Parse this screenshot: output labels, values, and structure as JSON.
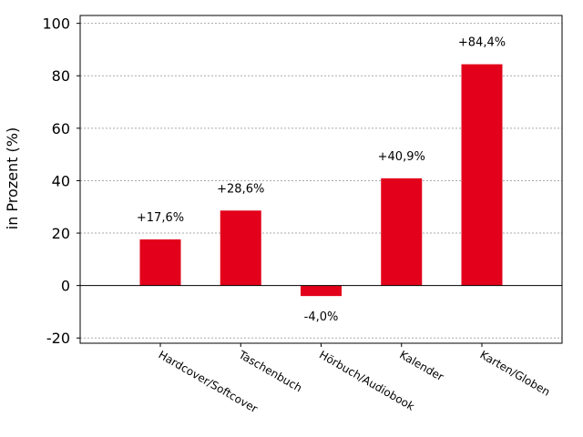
{
  "chart_data": {
    "type": "bar",
    "title": "",
    "xlabel": "",
    "ylabel": "in Prozent (%)",
    "categories": [
      "Hardcover/Softcover",
      "Taschenbuch",
      "Hörbuch/Audiobook",
      "Kalender",
      "Karten/Globen"
    ],
    "values": [
      17.6,
      28.6,
      -4.0,
      40.9,
      84.4
    ],
    "data_labels": [
      "+17,6%",
      "+28,6%",
      "-4,0%",
      "+40,9%",
      "+84,4%"
    ],
    "ylim": [
      -22,
      103
    ],
    "yticks": [
      -20,
      0,
      20,
      40,
      60,
      80,
      100
    ],
    "ytick_labels": [
      "-20",
      "0",
      "20",
      "40",
      "60",
      "80",
      "100"
    ],
    "grid": "horizontal dotted",
    "legend": "none",
    "bar_color": "#e2001a"
  }
}
